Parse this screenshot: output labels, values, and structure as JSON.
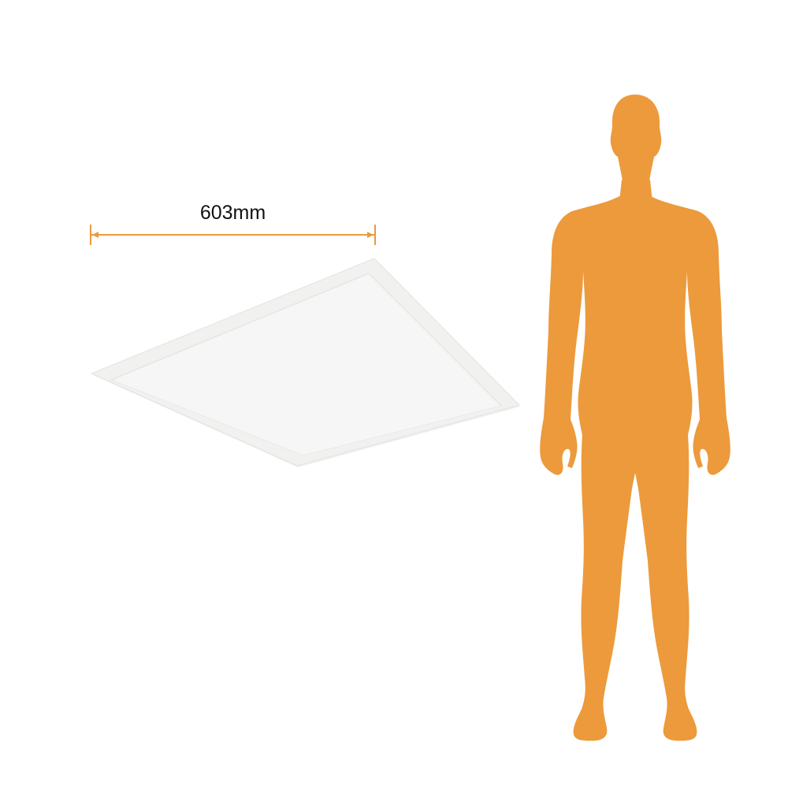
{
  "dimension": {
    "width_label": "603mm",
    "value_mm": 603
  },
  "colors": {
    "accent": "#EC9A3B",
    "panel_frame": "#F1F1F0",
    "panel_face": "#F6F6F6",
    "background": "#FFFFFF"
  },
  "figures": {
    "panel": "square-led-panel",
    "scale_reference": "human-silhouette"
  }
}
